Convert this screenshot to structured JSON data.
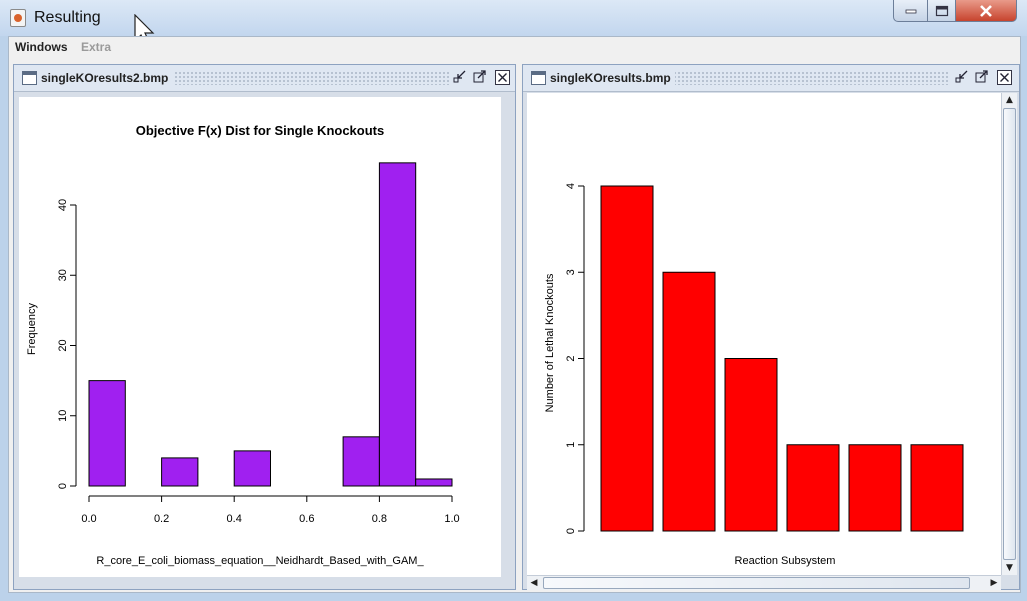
{
  "window": {
    "title": "Resulting"
  },
  "menu": {
    "items": [
      "Windows",
      "Extra"
    ]
  },
  "frames": [
    {
      "title": "singleKOresults2.bmp"
    },
    {
      "title": "singleKOresults.bmp"
    }
  ],
  "chart_data": [
    {
      "type": "bar",
      "subtype": "histogram",
      "title": "Objective F(x) Dist for Single Knockouts",
      "xlabel": "R_core_E_coli_biomass_equation__Neidhardt_Based_with_GAM_",
      "ylabel": "Frequency",
      "bins": [
        [
          0.0,
          0.1
        ],
        [
          0.2,
          0.3
        ],
        [
          0.4,
          0.5
        ],
        [
          0.7,
          0.8
        ],
        [
          0.8,
          0.9
        ],
        [
          0.9,
          1.0
        ]
      ],
      "values": [
        15,
        4,
        5,
        7,
        46,
        1
      ],
      "xlim": [
        0,
        1
      ],
      "ylim": [
        0,
        40
      ],
      "xticks": [
        "0.0",
        "0.2",
        "0.4",
        "0.6",
        "0.8",
        "1.0"
      ],
      "yticks": [
        "0",
        "10",
        "20",
        "30",
        "40"
      ],
      "color": "#a020f0"
    },
    {
      "type": "bar",
      "title": "",
      "xlabel": "Reaction Subsystem",
      "ylabel": "Number of Lethal Knockouts",
      "values": [
        4,
        3,
        2,
        1,
        1,
        1
      ],
      "ylim": [
        0,
        4
      ],
      "yticks": [
        "0",
        "1",
        "2",
        "3",
        "4"
      ],
      "color": "#ff0000"
    }
  ]
}
